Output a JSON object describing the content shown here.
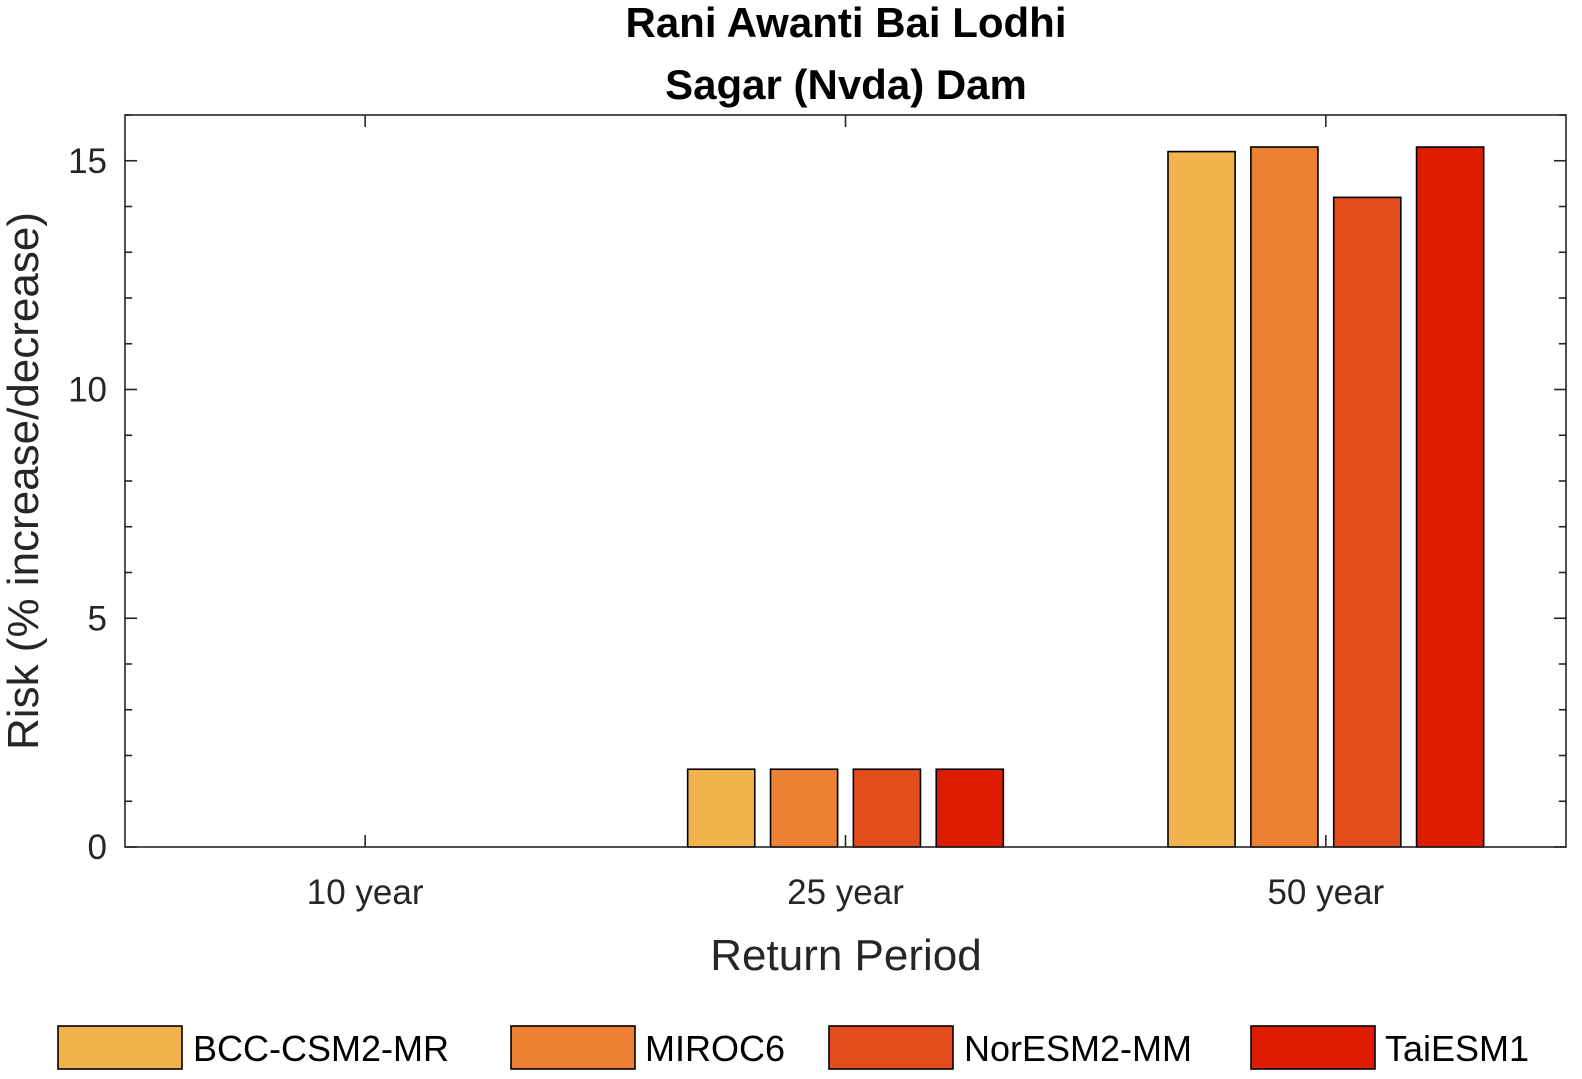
{
  "chart_data": {
    "type": "bar",
    "title": [
      "Rani Awanti Bai Lodhi",
      "Sagar (Nvda) Dam"
    ],
    "xlabel": "Return Period",
    "ylabel": "Risk (% increase/decrease)",
    "categories": [
      "10 year",
      "25 year",
      "50 year"
    ],
    "series": [
      {
        "name": "BCC-CSM2-MR",
        "color": "#F2B24C",
        "values": [
          0,
          1.7,
          15.2
        ]
      },
      {
        "name": "MIROC6",
        "color": "#EE8033",
        "values": [
          0,
          1.7,
          15.3
        ]
      },
      {
        "name": "NorESM2-MM",
        "color": "#E34D1C",
        "values": [
          0,
          1.7,
          14.2
        ]
      },
      {
        "name": "TaiESM1",
        "color": "#DD1C00",
        "values": [
          0,
          1.7,
          15.3
        ]
      }
    ],
    "ylim": [
      0,
      16
    ],
    "yticks": [
      0,
      5,
      10,
      15
    ],
    "grid": false,
    "legend_position": "bottom"
  }
}
